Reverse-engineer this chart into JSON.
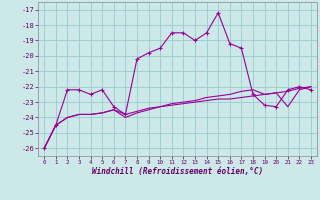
{
  "xlabel": "Windchill (Refroidissement éolien,°C)",
  "bg_color": "#cce8e8",
  "grid_color": "#99cccc",
  "line_color": "#990099",
  "x": [
    0,
    1,
    2,
    3,
    4,
    5,
    6,
    7,
    8,
    9,
    10,
    11,
    12,
    13,
    14,
    15,
    16,
    17,
    18,
    19,
    20,
    21,
    22,
    23
  ],
  "series1": [
    -26,
    -24.5,
    -22.2,
    -22.2,
    -22.5,
    -22.2,
    -23.3,
    -23.8,
    -20.2,
    -19.8,
    -19.5,
    -18.5,
    -18.5,
    -19.0,
    -18.5,
    -17.2,
    -19.2,
    -19.5,
    -22.5,
    -23.2,
    -23.3,
    -22.2,
    -22.0,
    -22.2
  ],
  "series2": [
    -26,
    -24.5,
    -24.0,
    -23.8,
    -23.8,
    -23.7,
    -23.5,
    -23.8,
    -23.6,
    -23.4,
    -23.3,
    -23.2,
    -23.1,
    -23.0,
    -22.9,
    -22.8,
    -22.8,
    -22.7,
    -22.6,
    -22.5,
    -22.4,
    -22.3,
    -22.1,
    -22.0
  ],
  "series3": [
    -26,
    -24.5,
    -24.0,
    -23.8,
    -23.8,
    -23.7,
    -23.5,
    -24.0,
    -23.7,
    -23.5,
    -23.3,
    -23.1,
    -23.0,
    -22.9,
    -22.7,
    -22.6,
    -22.5,
    -22.3,
    -22.2,
    -22.5,
    -22.4,
    -23.3,
    -22.2,
    -22.0
  ],
  "ylim": [
    -26.5,
    -16.5
  ],
  "xlim": [
    -0.5,
    23.5
  ],
  "yticks": [
    -26,
    -25,
    -24,
    -23,
    -22,
    -21,
    -20,
    -19,
    -18,
    -17
  ],
  "xticks": [
    0,
    1,
    2,
    3,
    4,
    5,
    6,
    7,
    8,
    9,
    10,
    11,
    12,
    13,
    14,
    15,
    16,
    17,
    18,
    19,
    20,
    21,
    22,
    23
  ]
}
